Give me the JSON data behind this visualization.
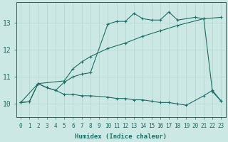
{
  "title": "",
  "xlabel": "Humidex (Indice chaleur)",
  "bg_color": "#cce8e4",
  "line_color": "#1a6e65",
  "grid_color": "#b8d8d4",
  "xlim": [
    -0.5,
    23.5
  ],
  "ylim": [
    9.5,
    13.75
  ],
  "yticks": [
    10,
    11,
    12,
    13
  ],
  "xticks": [
    0,
    1,
    2,
    3,
    4,
    5,
    6,
    7,
    8,
    9,
    10,
    11,
    12,
    13,
    14,
    15,
    16,
    17,
    18,
    19,
    20,
    21,
    22,
    23
  ],
  "line1_x": [
    0,
    1,
    2,
    3,
    4,
    5,
    6,
    7,
    8,
    10,
    11,
    12,
    13,
    14,
    15,
    16,
    17,
    18,
    19,
    21,
    22,
    23
  ],
  "line1_y": [
    10.05,
    10.08,
    10.75,
    10.6,
    10.5,
    10.35,
    10.35,
    10.3,
    10.3,
    10.25,
    10.2,
    10.2,
    10.15,
    10.15,
    10.1,
    10.05,
    10.05,
    10.0,
    9.95,
    10.3,
    10.5,
    10.1
  ],
  "line2_x": [
    0,
    1,
    2,
    3,
    4,
    5,
    6,
    7,
    8,
    10,
    11,
    12,
    13,
    14,
    15,
    16,
    17,
    18,
    20,
    21,
    22,
    23
  ],
  "line2_y": [
    10.05,
    10.08,
    10.75,
    10.6,
    10.5,
    10.8,
    11.0,
    11.1,
    11.15,
    12.95,
    13.05,
    13.05,
    13.35,
    13.15,
    13.1,
    13.1,
    13.4,
    13.1,
    13.2,
    13.15,
    10.45,
    10.1
  ],
  "line3_x": [
    0,
    2,
    5,
    6,
    7,
    8,
    10,
    12,
    14,
    16,
    18,
    21,
    23
  ],
  "line3_y": [
    10.05,
    10.75,
    10.85,
    11.3,
    11.55,
    11.75,
    12.05,
    12.25,
    12.5,
    12.7,
    12.9,
    13.15,
    13.2
  ]
}
